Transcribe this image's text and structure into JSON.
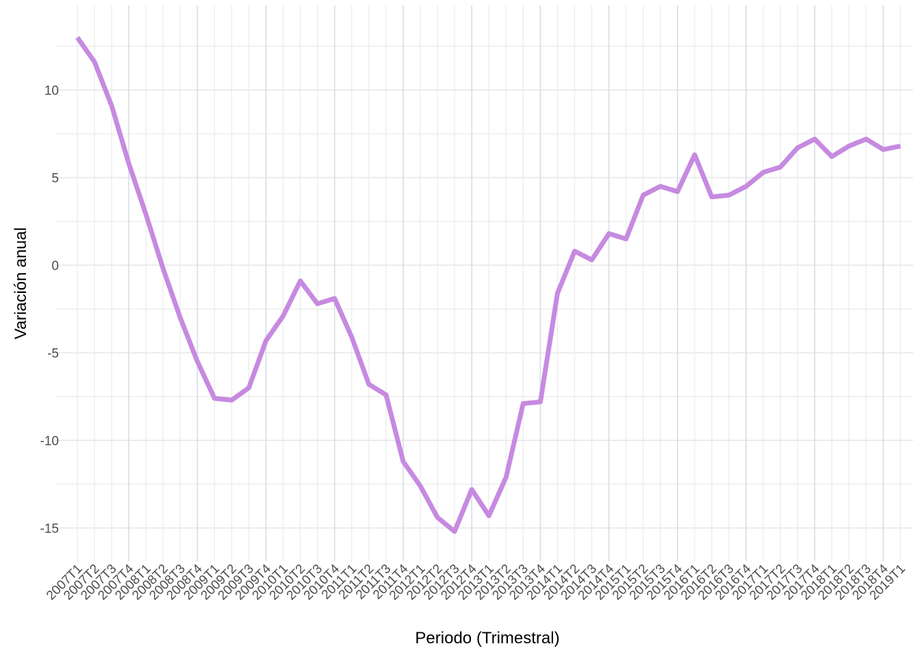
{
  "chart_data": {
    "type": "line",
    "xlabel": "Periodo (Trimestral)",
    "ylabel": "Variación anual",
    "ylim": [
      -16.5,
      13.5
    ],
    "yticks": [
      -15,
      -10,
      -5,
      0,
      5,
      10
    ],
    "grid": true,
    "line_color": "#c68ae0",
    "categories": [
      "2007T1",
      "2007T2",
      "2007T3",
      "2007T4",
      "2008T1",
      "2008T2",
      "2008T3",
      "2008T4",
      "2009T1",
      "2009T2",
      "2009T3",
      "2009T4",
      "2010T1",
      "2010T2",
      "2010T3",
      "2010T4",
      "2011T1",
      "2011T2",
      "2011T3",
      "2011T4",
      "2012T1",
      "2012T2",
      "2012T3",
      "2012T4",
      "2013T1",
      "2013T2",
      "2013T3",
      "2013T4",
      "2014T1",
      "2014T2",
      "2014T3",
      "2014T4",
      "2015T1",
      "2015T2",
      "2015T3",
      "2015T4",
      "2016T1",
      "2016T2",
      "2016T3",
      "2016T4",
      "2017T1",
      "2017T2",
      "2017T3",
      "2017T4",
      "2018T1",
      "2018T2",
      "2018T3",
      "2018T4",
      "2019T1"
    ],
    "series": [
      {
        "values": [
          13.0,
          11.6,
          9.1,
          5.8,
          2.9,
          -0.2,
          -3.0,
          -5.5,
          -7.6,
          -7.7,
          -7.0,
          -4.3,
          -2.9,
          -0.9,
          -2.2,
          -1.9,
          -4.1,
          -6.8,
          -7.4,
          -11.2,
          -12.6,
          -14.4,
          -15.2,
          -12.8,
          -14.3,
          -12.1,
          -7.9,
          -7.8,
          -1.6,
          0.8,
          0.3,
          1.8,
          1.5,
          4.0,
          4.5,
          4.2,
          6.3,
          3.9,
          4.0,
          4.5,
          5.3,
          5.6,
          6.7,
          7.2,
          6.2,
          6.8,
          7.2,
          6.6,
          6.8
        ]
      }
    ]
  }
}
